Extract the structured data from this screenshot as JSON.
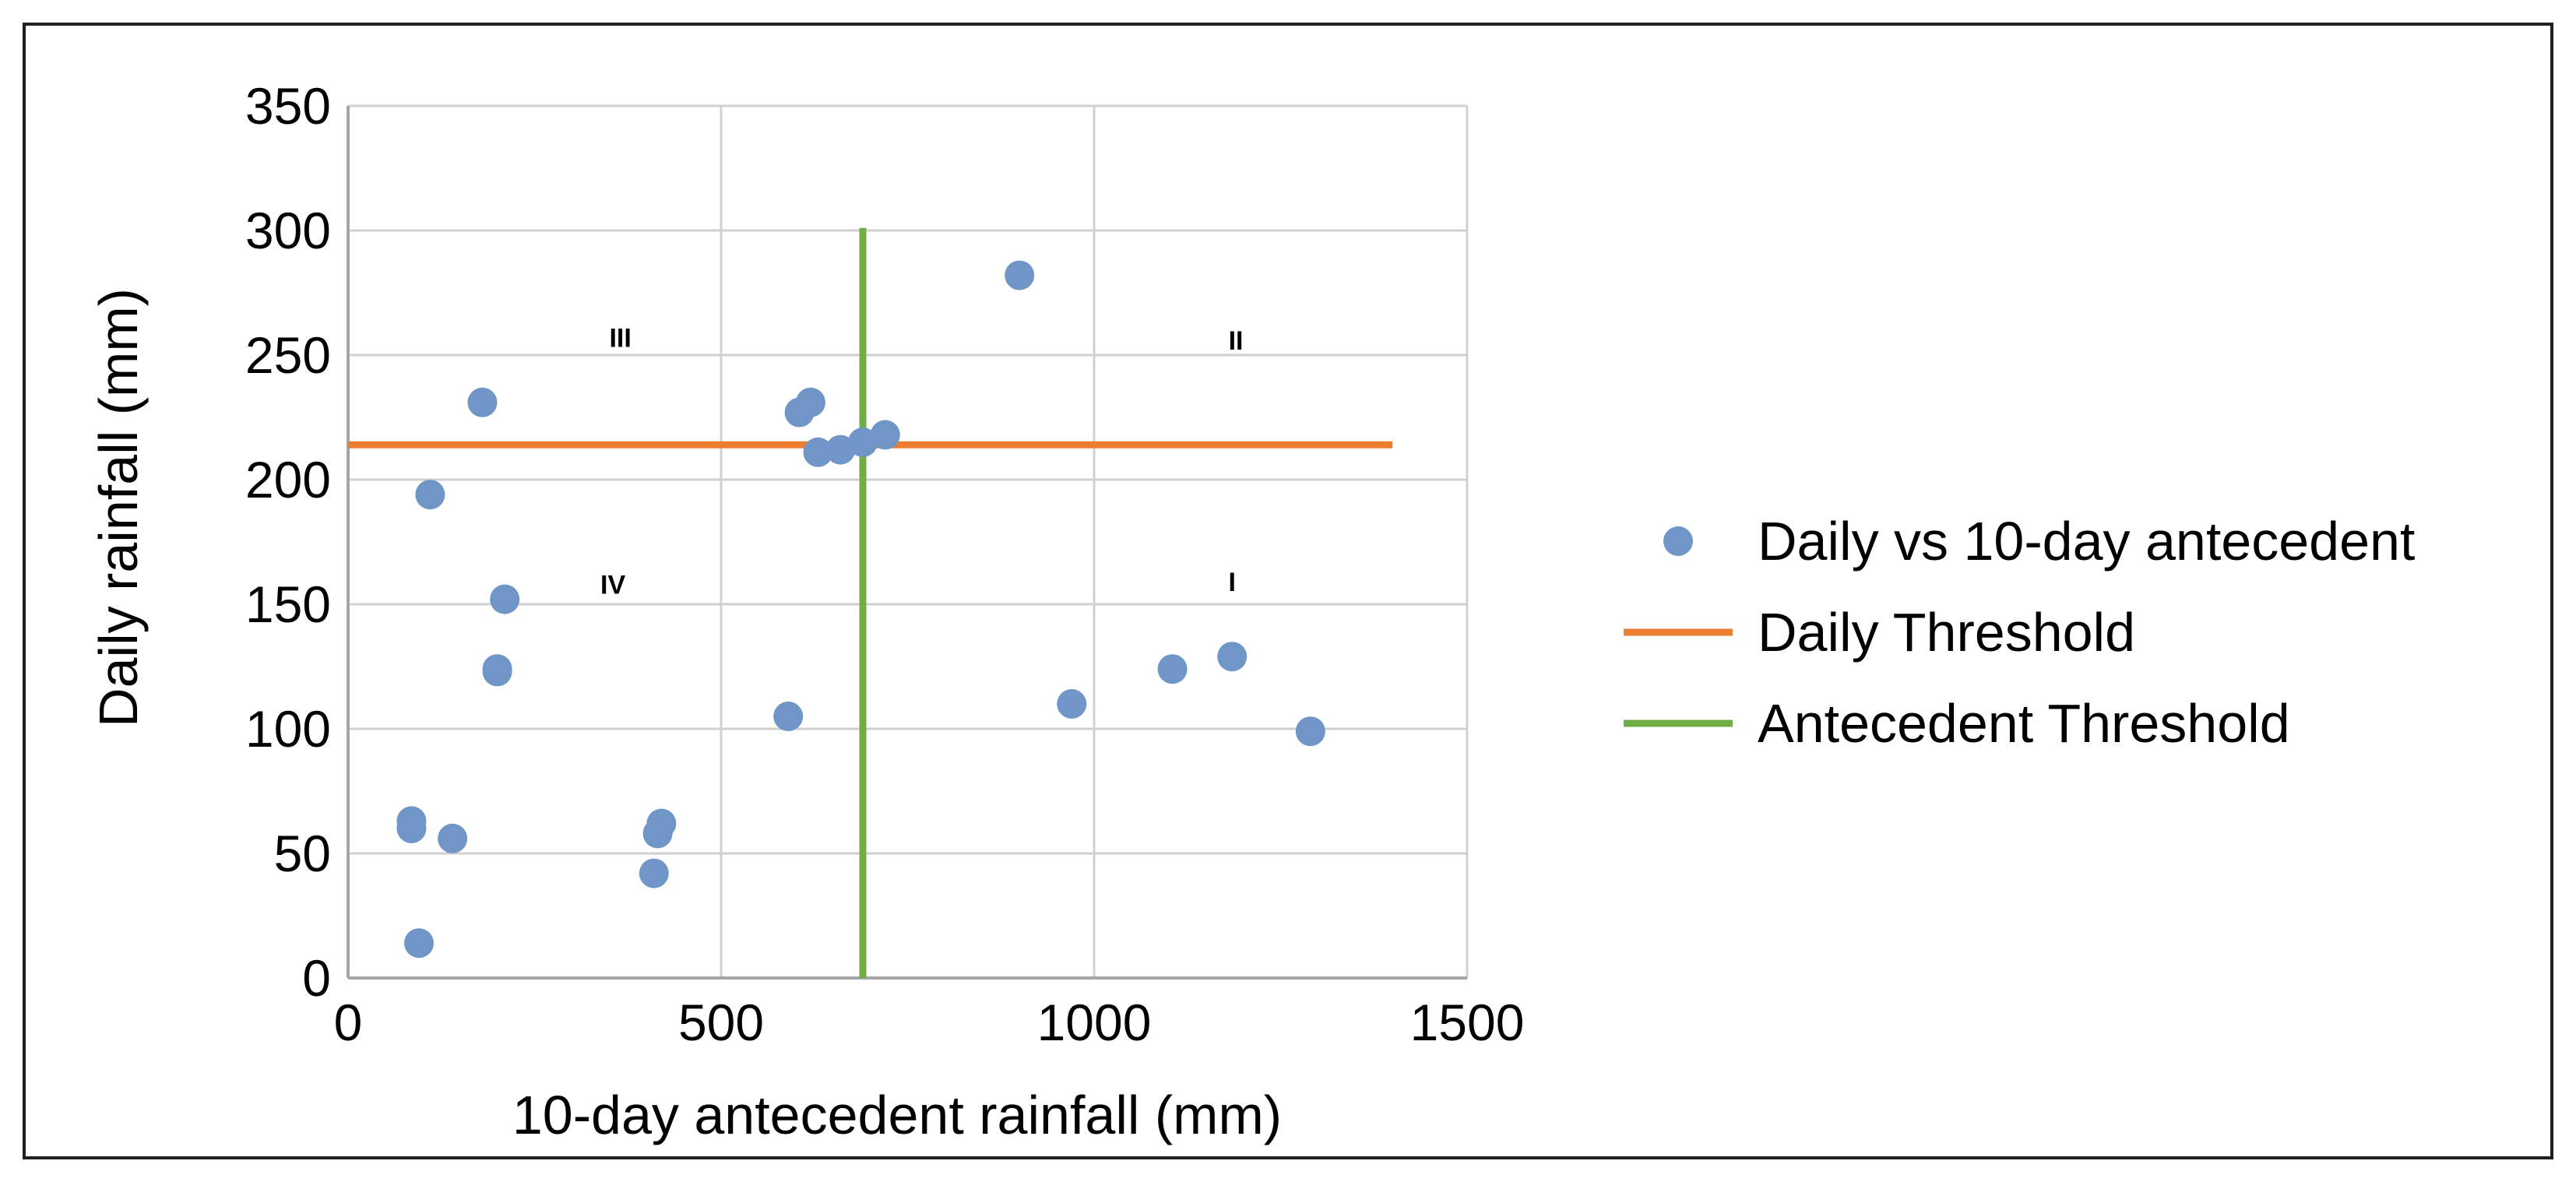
{
  "chart_data": {
    "type": "scatter",
    "title": "",
    "xlabel": "10-day antecedent rainfall (mm)",
    "ylabel": "Daily rainfall (mm)",
    "xlim": [
      0,
      1500
    ],
    "ylim": [
      0,
      350
    ],
    "x_ticks": [
      0,
      500,
      1000,
      1500
    ],
    "y_ticks": [
      0,
      50,
      100,
      150,
      200,
      250,
      300,
      350
    ],
    "x_tick_labels": [
      "0",
      "500",
      "1000",
      "1500"
    ],
    "y_tick_labels": [
      "0",
      "50",
      "100",
      "150",
      "200",
      "250",
      "300",
      "350"
    ],
    "grid": true,
    "legend_position": "right",
    "series": [
      {
        "name": "Daily vs 10-day antecedent",
        "kind": "scatter",
        "color": "#7096c8",
        "points": [
          {
            "x": 85,
            "y": 63
          },
          {
            "x": 85,
            "y": 60
          },
          {
            "x": 95,
            "y": 14
          },
          {
            "x": 110,
            "y": 194
          },
          {
            "x": 140,
            "y": 56
          },
          {
            "x": 180,
            "y": 231
          },
          {
            "x": 200,
            "y": 124
          },
          {
            "x": 200,
            "y": 123
          },
          {
            "x": 210,
            "y": 152
          },
          {
            "x": 410,
            "y": 42
          },
          {
            "x": 415,
            "y": 58
          },
          {
            "x": 420,
            "y": 62
          },
          {
            "x": 590,
            "y": 105
          },
          {
            "x": 605,
            "y": 227
          },
          {
            "x": 620,
            "y": 231
          },
          {
            "x": 630,
            "y": 211
          },
          {
            "x": 660,
            "y": 212
          },
          {
            "x": 690,
            "y": 215
          },
          {
            "x": 720,
            "y": 218
          },
          {
            "x": 900,
            "y": 282
          },
          {
            "x": 970,
            "y": 110
          },
          {
            "x": 1105,
            "y": 124
          },
          {
            "x": 1185,
            "y": 129
          },
          {
            "x": 1290,
            "y": 99
          }
        ]
      },
      {
        "name": "Daily Threshold",
        "kind": "line",
        "color": "#ed7d31",
        "points": [
          {
            "x": 0,
            "y": 214
          },
          {
            "x": 1400,
            "y": 214
          }
        ]
      },
      {
        "name": "Antecedent Threshold",
        "kind": "line",
        "color": "#70ad47",
        "points": [
          {
            "x": 690,
            "y": 0
          },
          {
            "x": 690,
            "y": 301
          }
        ]
      }
    ],
    "annotations": [
      {
        "text": "III",
        "x": 365,
        "y": 257
      },
      {
        "text": "II",
        "x": 1190,
        "y": 256
      },
      {
        "text": "IV",
        "x": 355,
        "y": 158
      },
      {
        "text": "I",
        "x": 1185,
        "y": 159
      }
    ]
  }
}
